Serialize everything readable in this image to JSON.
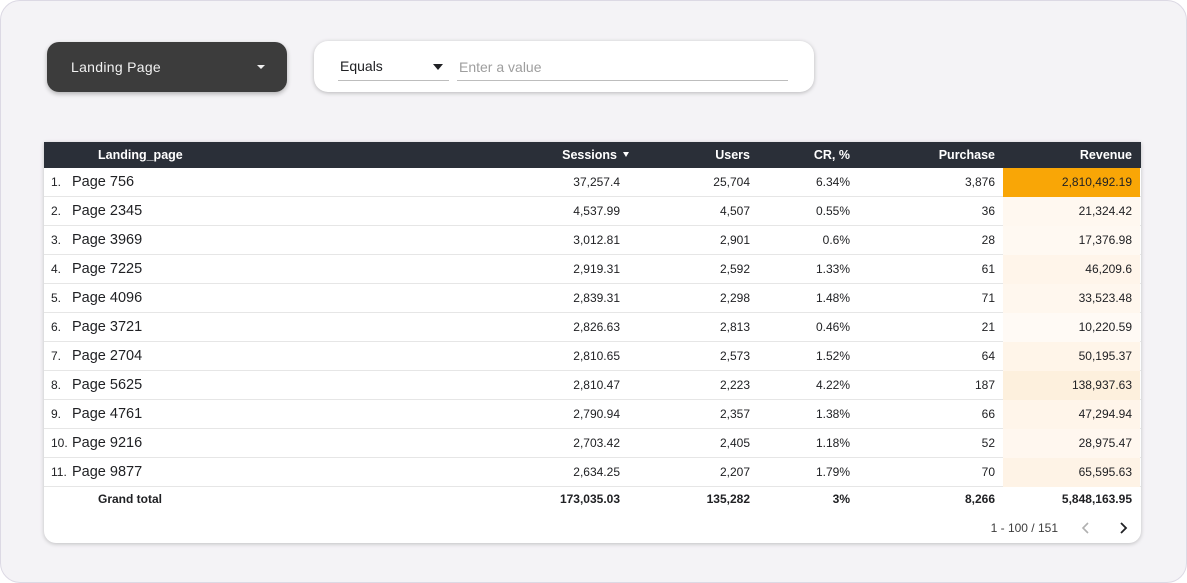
{
  "dimension_dropdown": {
    "label": "Landing Page"
  },
  "filter": {
    "operator": "Equals",
    "placeholder": "Enter a value"
  },
  "table": {
    "headers": {
      "landing_page": "Landing_page",
      "sessions": "Sessions",
      "users": "Users",
      "cr": "CR, %",
      "purchase": "Purchase",
      "revenue": "Revenue"
    },
    "rows": [
      {
        "idx": "1.",
        "page": "Page 756",
        "sessions": "37,257.4",
        "users": "25,704",
        "cr": "6.34%",
        "purchase": "3,876",
        "revenue": "2,810,492.19",
        "revenue_color": "#f9a606"
      },
      {
        "idx": "2.",
        "page": "Page 2345",
        "sessions": "4,537.99",
        "users": "4,507",
        "cr": "0.55%",
        "purchase": "36",
        "revenue": "21,324.42",
        "revenue_color": "#fff8f0"
      },
      {
        "idx": "3.",
        "page": "Page 3969",
        "sessions": "3,012.81",
        "users": "2,901",
        "cr": "0.6%",
        "purchase": "28",
        "revenue": "17,376.98",
        "revenue_color": "#fff9f2"
      },
      {
        "idx": "4.",
        "page": "Page 7225",
        "sessions": "2,919.31",
        "users": "2,592",
        "cr": "1.33%",
        "purchase": "61",
        "revenue": "46,209.6",
        "revenue_color": "#fff5ea"
      },
      {
        "idx": "5.",
        "page": "Page 4096",
        "sessions": "2,839.31",
        "users": "2,298",
        "cr": "1.48%",
        "purchase": "71",
        "revenue": "33,523.48",
        "revenue_color": "#fff7ee"
      },
      {
        "idx": "6.",
        "page": "Page 3721",
        "sessions": "2,826.63",
        "users": "2,813",
        "cr": "0.46%",
        "purchase": "21",
        "revenue": "10,220.59",
        "revenue_color": "#fffaf5"
      },
      {
        "idx": "7.",
        "page": "Page 2704",
        "sessions": "2,810.65",
        "users": "2,573",
        "cr": "1.52%",
        "purchase": "64",
        "revenue": "50,195.37",
        "revenue_color": "#fff5e9"
      },
      {
        "idx": "8.",
        "page": "Page 5625",
        "sessions": "2,810.47",
        "users": "2,223",
        "cr": "4.22%",
        "purchase": "187",
        "revenue": "138,937.63",
        "revenue_color": "#fdf0dd"
      },
      {
        "idx": "9.",
        "page": "Page 4761",
        "sessions": "2,790.94",
        "users": "2,357",
        "cr": "1.38%",
        "purchase": "66",
        "revenue": "47,294.94",
        "revenue_color": "#fff5ea"
      },
      {
        "idx": "10.",
        "page": "Page 9216",
        "sessions": "2,703.42",
        "users": "2,405",
        "cr": "1.18%",
        "purchase": "52",
        "revenue": "28,975.47",
        "revenue_color": "#fff7ef"
      },
      {
        "idx": "11.",
        "page": "Page 9877",
        "sessions": "2,634.25",
        "users": "2,207",
        "cr": "1.79%",
        "purchase": "70",
        "revenue": "65,595.63",
        "revenue_color": "#fef3e6"
      }
    ],
    "total": {
      "label": "Grand total",
      "sessions": "173,035.03",
      "users": "135,282",
      "cr": "3%",
      "purchase": "8,266",
      "revenue": "5,848,163.95"
    }
  },
  "pagination": {
    "range": "1 - 100 / 151"
  },
  "colors": {
    "header_bg": "#2a2f38",
    "dropdown_bg": "#3c3c3c",
    "revenue_max": "#f9a606"
  }
}
